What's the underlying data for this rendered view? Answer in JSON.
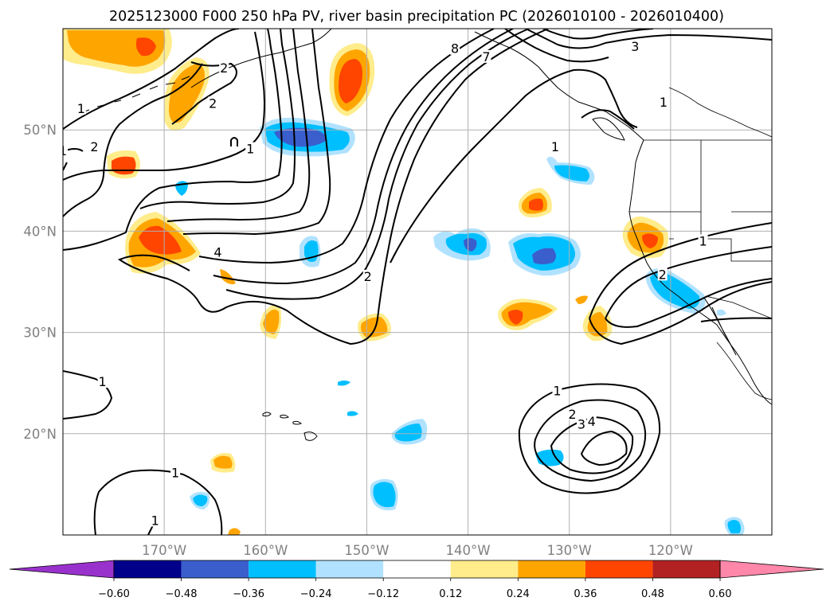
{
  "chart_data": {
    "type": "contour-map",
    "title": "2025123000 F000 250 hPa PV, river basin precipitation PC (2026010100 - 2026010400)",
    "lon_range": [
      -180,
      -110
    ],
    "lat_range": [
      10,
      60
    ],
    "xticks": [
      {
        "lon": -170,
        "label": "170°W"
      },
      {
        "lon": -160,
        "label": "160°W"
      },
      {
        "lon": -150,
        "label": "150°W"
      },
      {
        "lon": -140,
        "label": "140°W"
      },
      {
        "lon": -130,
        "label": "130°W"
      },
      {
        "lon": -120,
        "label": "120°W"
      }
    ],
    "yticks": [
      {
        "lat": 20,
        "label": "20°N"
      },
      {
        "lat": 30,
        "label": "30°N"
      },
      {
        "lat": 40,
        "label": "40°N"
      },
      {
        "lat": 50,
        "label": "50°N"
      }
    ],
    "colorbar": {
      "under_color": "#9932cc",
      "over_color": "#ff88aa",
      "bins": [
        {
          "lo": -0.6,
          "hi": -0.48,
          "color": "#00008b"
        },
        {
          "lo": -0.48,
          "hi": -0.36,
          "color": "#3a5fcd"
        },
        {
          "lo": -0.36,
          "hi": -0.24,
          "color": "#00bfff"
        },
        {
          "lo": -0.24,
          "hi": -0.12,
          "color": "#b0e2ff"
        },
        {
          "lo": -0.12,
          "hi": 0.12,
          "color": "#ffffff"
        },
        {
          "lo": 0.12,
          "hi": 0.24,
          "color": "#ffec8b"
        },
        {
          "lo": 0.24,
          "hi": 0.36,
          "color": "#ffa500"
        },
        {
          "lo": 0.36,
          "hi": 0.48,
          "color": "#ff4500"
        },
        {
          "lo": 0.48,
          "hi": 0.6,
          "color": "#b22222"
        },
        {
          "lo": 0.6,
          "hi": 0.72,
          "color": "#ff88aa"
        }
      ],
      "tick_labels": [
        "−0.60",
        "−0.48",
        "−0.36",
        "−0.24",
        "−0.12",
        "0.12",
        "0.24",
        "0.36",
        "0.48",
        "0.60"
      ]
    },
    "contour_labels": [
      {
        "text": "8",
        "lon": -141.3,
        "lat": 57.9
      },
      {
        "text": "7",
        "lon": -138.2,
        "lat": 57.1
      },
      {
        "text": "3",
        "lon": -123.5,
        "lat": 58.1
      },
      {
        "text": "1",
        "lon": -120.7,
        "lat": 52.6
      },
      {
        "text": "1",
        "lon": -131.4,
        "lat": 48.2
      },
      {
        "text": "2",
        "lon": -164.1,
        "lat": 56.0
      },
      {
        "text": "2",
        "lon": -165.2,
        "lat": 52.5
      },
      {
        "text": "1",
        "lon": -178.2,
        "lat": 52.0
      },
      {
        "text": "2",
        "lon": -176.9,
        "lat": 48.2
      },
      {
        "text": "1",
        "lon": -180.0,
        "lat": 47.8
      },
      {
        "text": "1",
        "lon": -161.5,
        "lat": 48.0
      },
      {
        "text": "4",
        "lon": -164.7,
        "lat": 37.8
      },
      {
        "text": "2",
        "lon": -149.9,
        "lat": 35.4
      },
      {
        "text": "1",
        "lon": -116.8,
        "lat": 38.9
      },
      {
        "text": "2",
        "lon": -120.8,
        "lat": 35.6
      },
      {
        "text": "1",
        "lon": -176.1,
        "lat": 25.0
      },
      {
        "text": "1",
        "lon": -131.2,
        "lat": 24.1
      },
      {
        "text": "2",
        "lon": -129.7,
        "lat": 21.8
      },
      {
        "text": "3",
        "lon": -128.8,
        "lat": 20.8
      },
      {
        "text": "4",
        "lon": -127.8,
        "lat": 21.1
      },
      {
        "text": "1",
        "lon": -168.9,
        "lat": 16.0
      },
      {
        "text": "1",
        "lon": -170.9,
        "lat": 11.3
      }
    ]
  }
}
